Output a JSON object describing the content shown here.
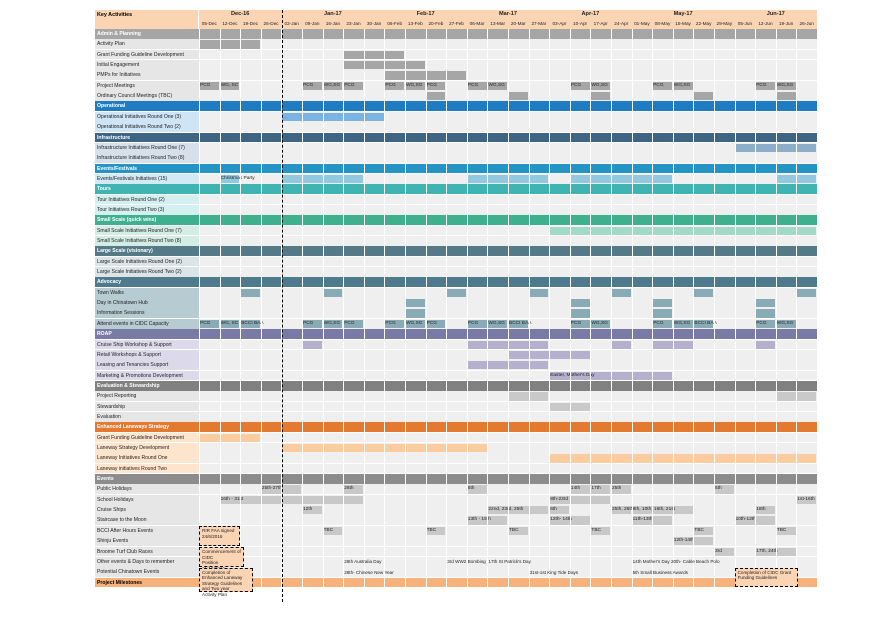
{
  "header": {
    "title": "Key Activities",
    "months": [
      {
        "label": "Dec-16",
        "start": 0,
        "span": 4
      },
      {
        "label": "Jan-17",
        "start": 4,
        "span": 5
      },
      {
        "label": "Feb-17",
        "start": 9,
        "span": 4
      },
      {
        "label": "Mar-17",
        "start": 13,
        "span": 4
      },
      {
        "label": "Apr-17",
        "start": 17,
        "span": 4
      },
      {
        "label": "May-17",
        "start": 21,
        "span": 5
      },
      {
        "label": "Jun-17",
        "start": 26,
        "span": 4
      }
    ],
    "weeks": [
      "05-Dec",
      "12-Dec",
      "19-Dec",
      "26-Dec",
      "02-Jan",
      "09-Jan",
      "16-Jan",
      "23-Jan",
      "30-Jan",
      "06-Feb",
      "13-Feb",
      "20-Feb",
      "27-Feb",
      "06-Mar",
      "13-Mar",
      "20-Mar",
      "27-Mar",
      "03-Apr",
      "10-Apr",
      "17-Apr",
      "24-Apr",
      "01-May",
      "08-May",
      "15-May",
      "22-May",
      "29-May",
      "05-Jun",
      "12-Jun",
      "19-Jun",
      "26-Jun"
    ]
  },
  "colors": {
    "admin": "#a6a6a6",
    "operational": "#1f7bc2",
    "operational_light": "#7bb4e3",
    "infra": "#3f6585",
    "infra_light": "#8daec8",
    "events": "#2394c3",
    "events_light": "#92c8e0",
    "tours": "#3fb4b3",
    "tours_light": "#a8dede",
    "small": "#3fb08e",
    "small_light": "#a3dac5",
    "large": "#537a86",
    "large_light": "#a7bdc3",
    "advocacy": "#4f7a8d",
    "advocacy_light": "#89abb5",
    "roap": "#7a7aa6",
    "roap_light": "#b4b0cd",
    "eval": "#808080",
    "eval_light": "#c9c9c9",
    "lane": "#e47a30",
    "lane_light": "#fbcc9d",
    "ev": "#8c8c8c",
    "ev_light": "#c8c8c8",
    "milestone": "#f6b27a"
  },
  "rows": [
    {
      "label": "Admin & Planning",
      "section": true,
      "color": "admin"
    },
    {
      "label": "Activity Plan",
      "tint": "#e6e6e6",
      "bars": [
        {
          "s": 0,
          "e": 3,
          "c": "admin"
        }
      ]
    },
    {
      "label": "Grant Funding Guideline Development",
      "tint": "#e6e6e6",
      "bars": [
        {
          "s": 7,
          "e": 10,
          "c": "admin"
        }
      ]
    },
    {
      "label": "Initial Engagement",
      "tint": "#e6e6e6",
      "bars": [
        {
          "s": 7,
          "e": 11,
          "c": "admin"
        }
      ]
    },
    {
      "label": "PMPs for Initiatives",
      "tint": "#e6e6e6",
      "bars": [
        {
          "s": 9,
          "e": 13,
          "c": "admin"
        }
      ]
    },
    {
      "label": "Project Meetings",
      "tint": "#e6e6e6",
      "bars": [
        {
          "s": 0,
          "e": 1,
          "c": "admin",
          "t": "PCG"
        },
        {
          "s": 1,
          "e": 2,
          "c": "admin",
          "t": "WG, SC"
        },
        {
          "s": 5,
          "e": 6,
          "c": "admin",
          "t": "PCG"
        },
        {
          "s": 6,
          "e": 7,
          "c": "admin",
          "t": "WG,SG"
        },
        {
          "s": 7,
          "e": 8,
          "c": "admin",
          "t": "PCG"
        },
        {
          "s": 9,
          "e": 10,
          "c": "admin",
          "t": "PCG"
        },
        {
          "s": 10,
          "e": 11,
          "c": "admin",
          "t": "WG,SG"
        },
        {
          "s": 11,
          "e": 12,
          "c": "admin",
          "t": "PCG"
        },
        {
          "s": 13,
          "e": 14,
          "c": "admin",
          "t": "PCG"
        },
        {
          "s": 14,
          "e": 15,
          "c": "admin",
          "t": "WG,SG"
        },
        {
          "s": 18,
          "e": 19,
          "c": "admin",
          "t": "PCG"
        },
        {
          "s": 19,
          "e": 20,
          "c": "admin",
          "t": "WG,SG"
        },
        {
          "s": 22,
          "e": 23,
          "c": "admin",
          "t": "PCG"
        },
        {
          "s": 23,
          "e": 24,
          "c": "admin",
          "t": "WG,SG"
        },
        {
          "s": 27,
          "e": 28,
          "c": "admin",
          "t": "PCG"
        },
        {
          "s": 28,
          "e": 29,
          "c": "admin",
          "t": "WG,SG"
        }
      ]
    },
    {
      "label": "Ordinary Council Meetings (TBC)",
      "tint": "#e6e6e6",
      "bars": [
        {
          "s": 11,
          "e": 12,
          "c": "admin"
        },
        {
          "s": 15,
          "e": 16,
          "c": "admin"
        },
        {
          "s": 19,
          "e": 20,
          "c": "admin"
        },
        {
          "s": 24,
          "e": 25,
          "c": "admin"
        },
        {
          "s": 28,
          "e": 29,
          "c": "admin"
        }
      ]
    },
    {
      "label": "Operational",
      "section": true,
      "color": "operational"
    },
    {
      "label": "Operational Initiatives Round One (3)",
      "tint": "#cfe4f5",
      "bars": [
        {
          "s": 4,
          "e": 9,
          "c": "operational_light"
        }
      ]
    },
    {
      "label": "Operational Initiatives Round Two (2)",
      "tint": "#cfe4f5",
      "bars": []
    },
    {
      "label": "Infrastructure",
      "section": true,
      "color": "infra"
    },
    {
      "label": "Infrastructure Initiatives Round One (7)",
      "tint": "#d5e0ea",
      "bars": [
        {
          "s": 26,
          "e": 30,
          "c": "infra_light"
        }
      ]
    },
    {
      "label": "Infrastructure Initiatives Round Two (8)",
      "tint": "#d5e0ea",
      "bars": []
    },
    {
      "label": "Events/Festivals",
      "section": true,
      "color": "events"
    },
    {
      "label": "Events/Festivals Initiatives (15)",
      "tint": "#d3e9f3",
      "bars": [
        {
          "s": 1,
          "e": 2,
          "c": "events_light",
          "t": "Christmas Party"
        },
        {
          "s": 4,
          "e": 8,
          "c": "events_light"
        },
        {
          "s": 13,
          "e": 17,
          "c": "events_light"
        },
        {
          "s": 18,
          "e": 23,
          "c": "events_light"
        },
        {
          "s": 28,
          "e": 30,
          "c": "events_light"
        }
      ]
    },
    {
      "label": "Tours",
      "section": true,
      "color": "tours"
    },
    {
      "label": "Tour Initiatives Round One (2)",
      "tint": "#d3efef",
      "bars": []
    },
    {
      "label": "Tour Initiatives Round Two (3)",
      "tint": "#d3efef",
      "bars": []
    },
    {
      "label": "Small Scale (quick wins)",
      "section": true,
      "color": "small"
    },
    {
      "label": "Small Scale Initiatives Round One (7)",
      "tint": "#d3ede4",
      "bars": [
        {
          "s": 17,
          "e": 30,
          "c": "small_light"
        }
      ]
    },
    {
      "label": "Small Scale Initiatives Round Two (8)",
      "tint": "#d3ede4",
      "bars": []
    },
    {
      "label": "Large Scale (visionary)",
      "section": true,
      "color": "large"
    },
    {
      "label": "Large Scale Initiatives Round One (2)",
      "tint": "#dbe4e7",
      "bars": []
    },
    {
      "label": "Large Scale Initiatives Round Two (2)",
      "tint": "#dbe4e7",
      "bars": []
    },
    {
      "label": "Advocacy",
      "section": true,
      "color": "advocacy"
    },
    {
      "label": "Town Walks",
      "tint": "#b7cbd2",
      "bars": [
        {
          "s": 2,
          "e": 3,
          "c": "advocacy_light"
        },
        {
          "s": 6,
          "e": 7,
          "c": "advocacy_light"
        },
        {
          "s": 12,
          "e": 13,
          "c": "advocacy_light"
        },
        {
          "s": 16,
          "e": 17,
          "c": "advocacy_light"
        },
        {
          "s": 20,
          "e": 21,
          "c": "advocacy_light"
        },
        {
          "s": 24,
          "e": 25,
          "c": "advocacy_light"
        },
        {
          "s": 29,
          "e": 30,
          "c": "advocacy_light"
        }
      ]
    },
    {
      "label": "Day in Chinatown Hub",
      "tint": "#b7cbd2",
      "bars": [
        {
          "s": 10,
          "e": 11,
          "c": "advocacy_light"
        },
        {
          "s": 18,
          "e": 19,
          "c": "advocacy_light"
        },
        {
          "s": 22,
          "e": 23,
          "c": "advocacy_light"
        },
        {
          "s": 27,
          "e": 28,
          "c": "advocacy_light"
        }
      ]
    },
    {
      "label": "Information Sessions",
      "tint": "#b7cbd2",
      "bars": [
        {
          "s": 10,
          "e": 11,
          "c": "advocacy_light"
        },
        {
          "s": 18,
          "e": 19,
          "c": "advocacy_light"
        },
        {
          "s": 22,
          "e": 23,
          "c": "advocacy_light"
        },
        {
          "s": 27,
          "e": 28,
          "c": "advocacy_light"
        }
      ]
    },
    {
      "label": "Attend events in CIDC Capacity",
      "tint": "#b7cbd2",
      "bars": [
        {
          "s": 0,
          "e": 1,
          "c": "advocacy_light",
          "t": "PCG"
        },
        {
          "s": 1,
          "e": 2,
          "c": "advocacy_light",
          "t": "WG, SC"
        },
        {
          "s": 2,
          "e": 3,
          "c": "advocacy_light",
          "t": "BCCI BAA"
        },
        {
          "s": 5,
          "e": 6,
          "c": "advocacy_light",
          "t": "PCG"
        },
        {
          "s": 6,
          "e": 7,
          "c": "advocacy_light",
          "t": "WG,SG"
        },
        {
          "s": 7,
          "e": 8,
          "c": "advocacy_light",
          "t": "PCG"
        },
        {
          "s": 9,
          "e": 10,
          "c": "advocacy_light",
          "t": "PCG"
        },
        {
          "s": 10,
          "e": 11,
          "c": "advocacy_light",
          "t": "WG,SG"
        },
        {
          "s": 11,
          "e": 12,
          "c": "advocacy_light",
          "t": "PCG"
        },
        {
          "s": 13,
          "e": 14,
          "c": "advocacy_light",
          "t": "PCG"
        },
        {
          "s": 14,
          "e": 15,
          "c": "advocacy_light",
          "t": "WG,SG"
        },
        {
          "s": 15,
          "e": 16,
          "c": "advocacy_light",
          "t": "BCCI BAA"
        },
        {
          "s": 18,
          "e": 19,
          "c": "advocacy_light",
          "t": "PCG"
        },
        {
          "s": 19,
          "e": 20,
          "c": "advocacy_light",
          "t": "WG,SG"
        },
        {
          "s": 22,
          "e": 23,
          "c": "advocacy_light",
          "t": "PCG"
        },
        {
          "s": 23,
          "e": 24,
          "c": "advocacy_light",
          "t": "WG,SG"
        },
        {
          "s": 24,
          "e": 25,
          "c": "advocacy_light",
          "t": "BCCI BAA"
        },
        {
          "s": 27,
          "e": 28,
          "c": "advocacy_light",
          "t": "PCG"
        },
        {
          "s": 28,
          "e": 29,
          "c": "advocacy_light",
          "t": "WG,SG"
        }
      ]
    },
    {
      "label": "ROAP",
      "section": true,
      "color": "roap"
    },
    {
      "label": "Cruise Ship Workshop & Support",
      "tint": "#dcdaea",
      "bars": [
        {
          "s": 5,
          "e": 6,
          "c": "roap_light"
        },
        {
          "s": 13,
          "e": 17,
          "c": "roap_light"
        },
        {
          "s": 20,
          "e": 21,
          "c": "roap_light"
        },
        {
          "s": 22,
          "e": 24,
          "c": "roap_light"
        },
        {
          "s": 27,
          "e": 28,
          "c": "roap_light"
        }
      ]
    },
    {
      "label": "Retail Workshops & Support",
      "tint": "#dcdaea",
      "bars": [
        {
          "s": 15,
          "e": 19,
          "c": "roap_light"
        }
      ]
    },
    {
      "label": "Leasing and Tenancies Support",
      "tint": "#dcdaea",
      "bars": [
        {
          "s": 13,
          "e": 17,
          "c": "roap_light"
        }
      ]
    },
    {
      "label": "Marketing & Promotions Development",
      "tint": "#dcdaea",
      "bars": [
        {
          "s": 17,
          "e": 23,
          "c": "roap_light",
          "t": "Easter, Mother's Day"
        }
      ]
    },
    {
      "label": "Evaluation & Stewardship",
      "section": true,
      "color": "eval"
    },
    {
      "label": "Project Reporting",
      "tint": "#e6e6e6",
      "bars": [
        {
          "s": 15,
          "e": 17,
          "c": "eval_light"
        },
        {
          "s": 28,
          "e": 30,
          "c": "eval_light"
        }
      ]
    },
    {
      "label": "Stewardship",
      "tint": "#e6e6e6",
      "bars": [
        {
          "s": 17,
          "e": 19,
          "c": "eval_light"
        }
      ]
    },
    {
      "label": "Evaluation",
      "tint": "#e6e6e6",
      "bars": []
    },
    {
      "label": "Enhanced Laneways Strategy",
      "section": true,
      "color": "lane"
    },
    {
      "label": "Grant Funding Guideline Development",
      "tint": "#fde5cd",
      "bars": [
        {
          "s": 0,
          "e": 3,
          "c": "lane_light"
        }
      ]
    },
    {
      "label": "Laneway Strategy Development",
      "tint": "#fde5cd",
      "bars": [
        {
          "s": 4,
          "e": 14,
          "c": "lane_light"
        }
      ]
    },
    {
      "label": "Laneway Initiatives Round One",
      "tint": "#fde5cd",
      "bars": [
        {
          "s": 17,
          "e": 30,
          "c": "lane_light"
        }
      ]
    },
    {
      "label": "Laneway initiatives Round Two",
      "tint": "#fde5cd",
      "bars": []
    },
    {
      "label": "Events",
      "section": true,
      "color": "ev"
    },
    {
      "label": "Public Holidays",
      "tint": "#e6e6e6",
      "bars": [
        {
          "s": 3,
          "e": 5,
          "c": "ev_light",
          "t": "25th-27th"
        },
        {
          "s": 7,
          "e": 8,
          "c": "ev_light",
          "t": "26th"
        },
        {
          "s": 13,
          "e": 14,
          "c": "ev_light",
          "t": "6th"
        },
        {
          "s": 18,
          "e": 19,
          "c": "ev_light",
          "t": "14th"
        },
        {
          "s": 19,
          "e": 20,
          "c": "ev_light",
          "t": "17th"
        },
        {
          "s": 20,
          "e": 21,
          "c": "ev_light",
          "t": "25th"
        },
        {
          "s": 25,
          "e": 26,
          "c": "ev_light",
          "t": "5th"
        }
      ]
    },
    {
      "label": "School Holidays",
      "tint": "#e6e6e6",
      "bars": [
        {
          "s": 1,
          "e": 8,
          "c": "ev_light",
          "t": "16th - 31st"
        },
        {
          "s": 17,
          "e": 20,
          "c": "ev_light",
          "t": "8th-23rd"
        },
        {
          "s": 29,
          "e": 30,
          "c": "ev_light",
          "t": "1st-16th"
        }
      ]
    },
    {
      "label": "Cruise Ships",
      "tint": "#e6e6e6",
      "bars": [
        {
          "s": 5,
          "e": 6,
          "c": "ev_light",
          "t": "12th"
        },
        {
          "s": 14,
          "e": 17,
          "c": "ev_light",
          "t": "22nd, 23rd, 26th"
        },
        {
          "s": 17,
          "e": 18,
          "c": "ev_light",
          "t": "6th"
        },
        {
          "s": 20,
          "e": 21,
          "c": "ev_light",
          "t": "25th, 26th"
        },
        {
          "s": 21,
          "e": 24,
          "c": "ev_light",
          "t": "8th, 10th, 16th, 21st"
        },
        {
          "s": 27,
          "e": 28,
          "c": "ev_light",
          "t": "18th"
        }
      ]
    },
    {
      "label": "Staircase to the Moon",
      "tint": "#e6e6e6",
      "bars": [
        {
          "s": 13,
          "e": 15,
          "c": "ev_light",
          "t": "13th - 15th"
        },
        {
          "s": 17,
          "e": 19,
          "c": "ev_light",
          "t": "12th- 14th"
        },
        {
          "s": 21,
          "e": 23,
          "c": "ev_light",
          "t": "11th-13th"
        },
        {
          "s": 26,
          "e": 28,
          "c": "ev_light",
          "t": "10th-12th"
        }
      ]
    },
    {
      "label": "BCCI After Hours Events",
      "tint": "#e6e6e6",
      "bars": [
        {
          "s": 6,
          "e": 7,
          "c": "ev_light",
          "t": "TBC"
        },
        {
          "s": 11,
          "e": 12,
          "c": "ev_light",
          "t": "TBC"
        },
        {
          "s": 15,
          "e": 16,
          "c": "ev_light",
          "t": "TBC"
        },
        {
          "s": 19,
          "e": 20,
          "c": "ev_light",
          "t": "TBC"
        },
        {
          "s": 24,
          "e": 25,
          "c": "ev_light",
          "t": "TBC"
        },
        {
          "s": 28,
          "e": 29,
          "c": "ev_light",
          "t": "TBC"
        }
      ]
    },
    {
      "label": "Shinju Events",
      "tint": "#e6e6e6",
      "bars": [
        {
          "s": 23,
          "e": 25,
          "c": "ev_light",
          "t": "12th-14th"
        }
      ]
    },
    {
      "label": "Broome Turf Club Races",
      "tint": "#e6e6e6",
      "bars": [
        {
          "s": 25,
          "e": 26,
          "c": "ev_light",
          "t": "3rd"
        },
        {
          "s": 27,
          "e": 29,
          "c": "ev_light",
          "t": "17th, 24th"
        }
      ]
    },
    {
      "label": "Other events & Days to remember",
      "tint": "#e6e6e6",
      "bars": []
    },
    {
      "label": "Potential Chinatown Events",
      "tint": "#e6e6e6",
      "bars": []
    },
    {
      "label": "Project Milestones",
      "section": true,
      "color": "milestone",
      "dark": true
    }
  ],
  "notes": [
    {
      "row": 51,
      "col": 7.0,
      "text": "26th Australia Day"
    },
    {
      "row": 51,
      "col": 12.0,
      "text": "3rd WW2 Bombing"
    },
    {
      "row": 51,
      "col": 14.0,
      "text": "17th St Patrick's Day"
    },
    {
      "row": 51,
      "col": 21.0,
      "text": "14th Mother's Day  20th- Cable Beach Polo"
    },
    {
      "row": 52,
      "col": 7.0,
      "text": "28th- Chinese New Year"
    },
    {
      "row": 52,
      "col": 16.0,
      "text": "31st-1st King Tide Days"
    },
    {
      "row": 52,
      "col": 21.0,
      "text": "5th Small Business Awards"
    }
  ],
  "milestones": [
    {
      "row": 48,
      "rows": 2,
      "col": 0,
      "w": 2,
      "lines": [
        "RIR FAA signed",
        "24/6/2016"
      ]
    },
    {
      "row": 50,
      "rows": 2,
      "col": 0,
      "w": 2.2,
      "lines": [
        "Commencement of CIDC",
        "Position 31/10/2016"
      ]
    },
    {
      "row": 52,
      "rows": 2.4,
      "col": 0,
      "w": 2.6,
      "lines": [
        "Completion of Enhanced Laneway",
        "Strategy Guidelines and Two year",
        "Activity Plan"
      ]
    },
    {
      "row": 52,
      "rows": 2,
      "col": 26,
      "w": 3.1,
      "lines": [
        "Completion of CIDC Grant",
        "Funding Guidelines"
      ]
    }
  ]
}
